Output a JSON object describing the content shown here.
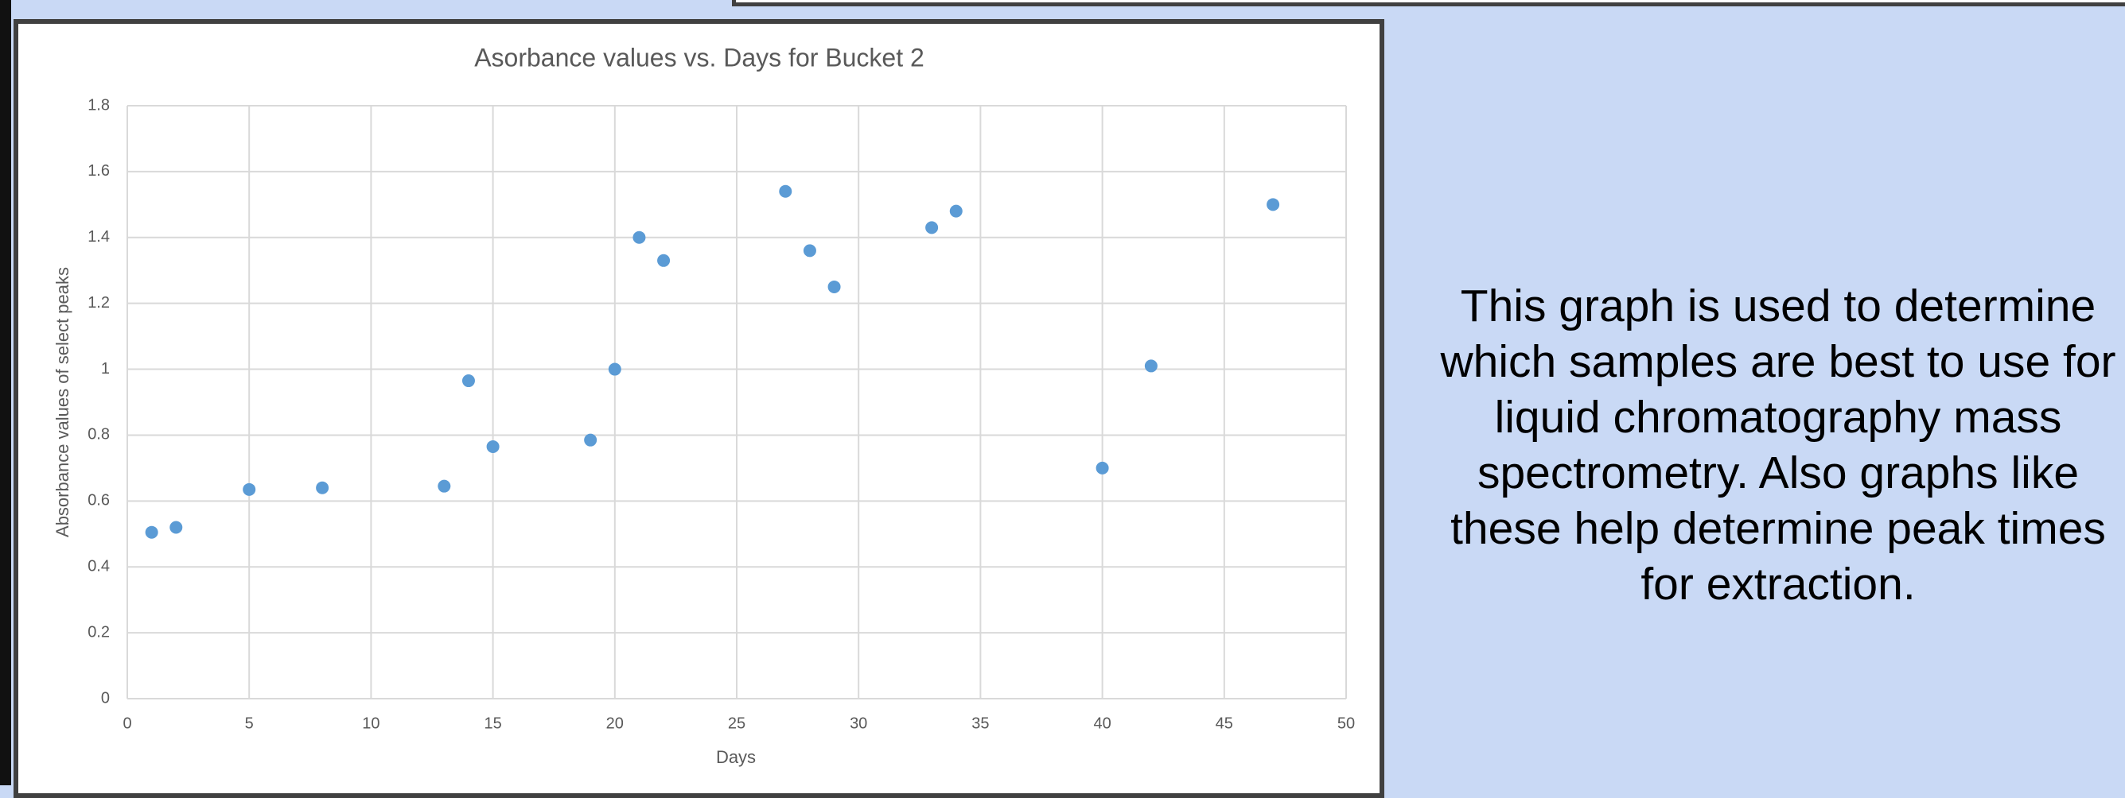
{
  "chart_data": {
    "type": "scatter",
    "title": "Asorbance values vs. Days for Bucket 2",
    "x_label": "Days",
    "y_label": "Absorbance values of select peaks",
    "color": "#5b9bd5",
    "grid": true,
    "xlim": [
      0,
      50
    ],
    "xticks": [
      0,
      5,
      10,
      15,
      20,
      25,
      30,
      35,
      40,
      45,
      50
    ],
    "ylim": [
      0,
      1.8
    ],
    "yticks": [
      0,
      0.2,
      0.4,
      0.6,
      0.8,
      1,
      1.2,
      1.4,
      1.6,
      1.8
    ],
    "x": [
      1,
      2,
      5,
      8,
      13,
      14,
      15,
      19,
      20,
      21,
      22,
      27,
      28,
      29,
      33,
      34,
      40,
      42,
      47
    ],
    "values": [
      0.505,
      0.52,
      0.635,
      0.64,
      0.645,
      0.965,
      0.765,
      0.785,
      1.0,
      1.4,
      1.33,
      1.54,
      1.36,
      1.25,
      1.43,
      1.48,
      0.7,
      1.01,
      1.5
    ]
  },
  "caption": "This graph is used to determine which samples are best to use for liquid chromatography mass spectrometry. Also graphs like these help determine peak times for extraction."
}
